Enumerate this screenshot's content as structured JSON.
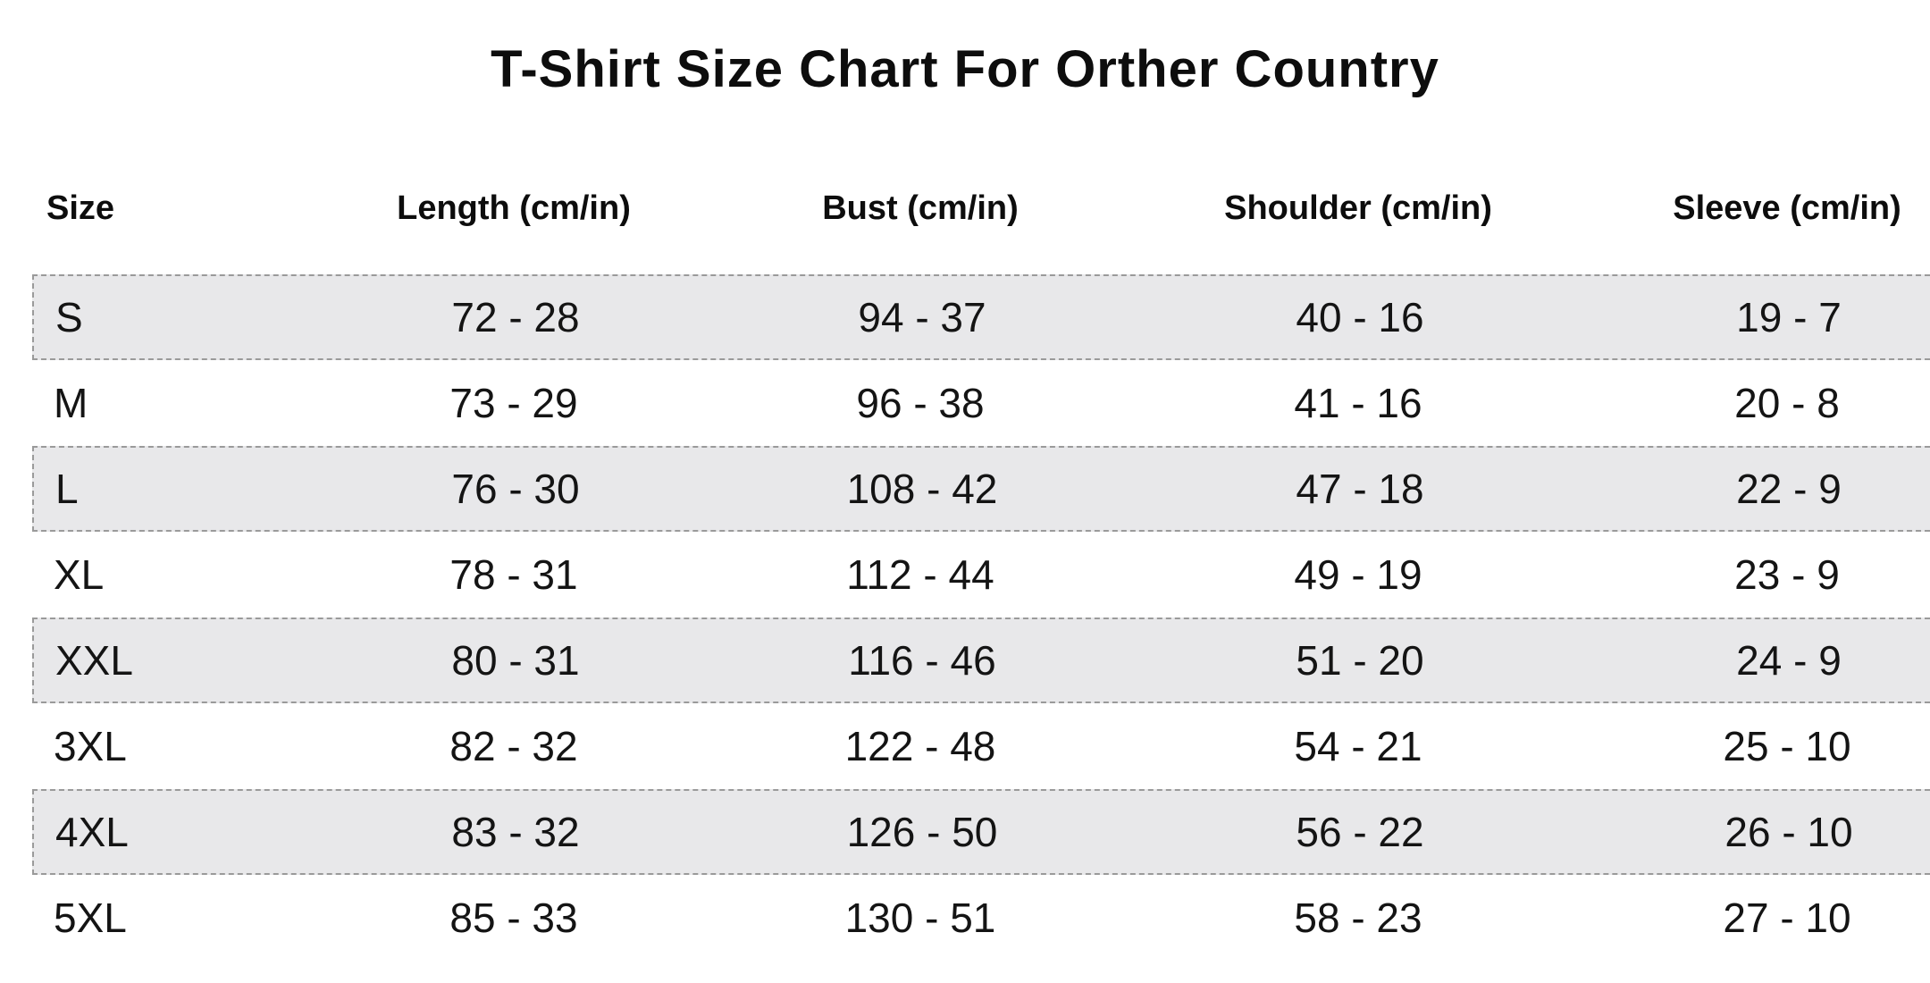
{
  "title": "T-Shirt Size Chart For Orther Country",
  "table": {
    "columns": [
      "Size",
      "Length (cm/in)",
      "Bust (cm/in)",
      "Shoulder (cm/in)",
      "Sleeve (cm/in)"
    ],
    "rows": [
      {
        "size": "S",
        "length": "72 - 28",
        "bust": "94 - 37",
        "shoulder": "40 - 16",
        "sleeve": "19 - 7"
      },
      {
        "size": "M",
        "length": "73 - 29",
        "bust": "96 - 38",
        "shoulder": "41 - 16",
        "sleeve": "20 - 8"
      },
      {
        "size": "L",
        "length": "76 - 30",
        "bust": "108 - 42",
        "shoulder": "47 - 18",
        "sleeve": "22 - 9"
      },
      {
        "size": "XL",
        "length": "78 - 31",
        "bust": "112 - 44",
        "shoulder": "49 - 19",
        "sleeve": "23 - 9"
      },
      {
        "size": "XXL",
        "length": "80 - 31",
        "bust": "116 - 46",
        "shoulder": "51 - 20",
        "sleeve": "24 - 9"
      },
      {
        "size": "3XL",
        "length": "82 - 32",
        "bust": "122 - 48",
        "shoulder": "54 - 21",
        "sleeve": "25 - 10"
      },
      {
        "size": "4XL",
        "length": "83 - 32",
        "bust": "126 - 50",
        "shoulder": "56 - 22",
        "sleeve": "26 - 10"
      },
      {
        "size": "5XL",
        "length": "85 - 33",
        "bust": "130 - 51",
        "shoulder": "58 - 23",
        "sleeve": "27 - 10"
      }
    ]
  },
  "colors": {
    "background": "#ffffff",
    "text": "#111111",
    "row_stripe": "#e8e8ea",
    "row_border": "#9a9a9a"
  },
  "chart_data": {
    "type": "table",
    "title": "T-Shirt Size Chart For Orther Country",
    "columns": [
      "Size",
      "Length (cm/in)",
      "Bust (cm/in)",
      "Shoulder (cm/in)",
      "Sleeve (cm/in)"
    ],
    "rows": [
      [
        "S",
        "72 - 28",
        "94 - 37",
        "40 - 16",
        "19 - 7"
      ],
      [
        "M",
        "73 - 29",
        "96 - 38",
        "41 - 16",
        "20 - 8"
      ],
      [
        "L",
        "76 - 30",
        "108 - 42",
        "47 - 18",
        "22 - 9"
      ],
      [
        "XL",
        "78 - 31",
        "112 - 44",
        "49 - 19",
        "23 - 9"
      ],
      [
        "XXL",
        "80 - 31",
        "116 - 46",
        "51 - 20",
        "24 - 9"
      ],
      [
        "3XL",
        "82 - 32",
        "122 - 48",
        "54 - 21",
        "25 - 10"
      ],
      [
        "4XL",
        "83 - 32",
        "126 - 50",
        "56 - 22",
        "26 - 10"
      ],
      [
        "5XL",
        "85 - 33",
        "130 - 51",
        "58 - 23",
        "27 - 10"
      ]
    ],
    "layout_hints": {
      "striped_row_indices": [
        0,
        2,
        4,
        6
      ],
      "stripe_style": "light-gray background with gray dashed border",
      "numeric_cell_alignment": "center",
      "size_column_alignment": "left"
    }
  }
}
